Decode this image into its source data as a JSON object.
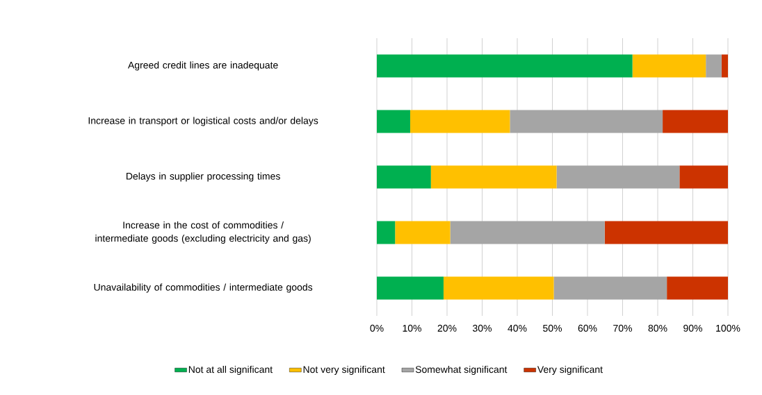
{
  "chart_data": {
    "type": "bar",
    "orientation": "horizontal",
    "stacked": true,
    "categories": [
      "Agreed credit lines are inadequate",
      "Increase in transport or logistical costs and/or delays",
      "Delays in supplier processing times",
      "Increase in the cost of commodities / intermediate goods (excluding electricity and gas)",
      "Unavailability of commodities / intermediate goods"
    ],
    "series": [
      {
        "name": "Not at all significant",
        "color": "#00b050",
        "values": [
          72.8,
          9.5,
          15.4,
          5.2,
          19.0
        ]
      },
      {
        "name": "Not very significant",
        "color": "#ffc000",
        "values": [
          20.9,
          28.4,
          35.8,
          15.7,
          31.4
        ]
      },
      {
        "name": "Somewhat significant",
        "color": "#a5a5a5",
        "values": [
          4.5,
          43.5,
          35.0,
          44.0,
          32.2
        ]
      },
      {
        "name": "Very significant",
        "color": "#cc3300",
        "values": [
          1.8,
          18.6,
          13.8,
          35.1,
          17.4
        ]
      }
    ],
    "xlim": [
      0,
      100
    ],
    "xticks": [
      {
        "value": 0,
        "label": "0%"
      },
      {
        "value": 10,
        "label": "10%"
      },
      {
        "value": 20,
        "label": "20%"
      },
      {
        "value": 30,
        "label": "30%"
      },
      {
        "value": 40,
        "label": "40%"
      },
      {
        "value": 50,
        "label": "50%"
      },
      {
        "value": 60,
        "label": "60%"
      },
      {
        "value": 70,
        "label": "70%"
      },
      {
        "value": 80,
        "label": "80%"
      },
      {
        "value": 90,
        "label": "90%"
      },
      {
        "value": 100,
        "label": "100%"
      }
    ],
    "grid": "x",
    "legend": "bottom"
  }
}
